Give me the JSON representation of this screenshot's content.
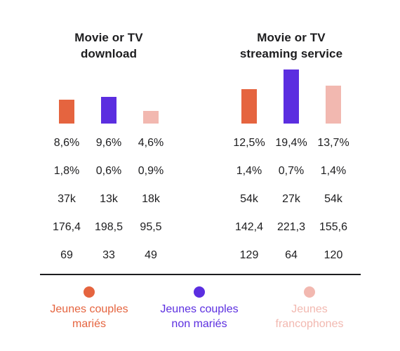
{
  "chart_data": [
    {
      "type": "bar",
      "title_lines": [
        "Movie or TV",
        "download"
      ],
      "categories": [
        "Jeunes couples mariés",
        "Jeunes couples non mariés",
        "Jeunes francophones"
      ],
      "values": [
        8.6,
        9.6,
        4.6
      ],
      "rows": [
        [
          "8,6%",
          "9,6%",
          "4,6%"
        ],
        [
          "1,8%",
          "0,6%",
          "0,9%"
        ],
        [
          "37k",
          "13k",
          "18k"
        ],
        [
          "176,4",
          "198,5",
          "95,5"
        ],
        [
          "69",
          "33",
          "49"
        ]
      ]
    },
    {
      "type": "bar",
      "title_lines": [
        "Movie or TV",
        "streaming service"
      ],
      "categories": [
        "Jeunes couples mariés",
        "Jeunes couples non mariés",
        "Jeunes francophones"
      ],
      "values": [
        12.5,
        19.4,
        13.7
      ],
      "rows": [
        [
          "12,5%",
          "19,4%",
          "13,7%"
        ],
        [
          "1,4%",
          "0,7%",
          "1,4%"
        ],
        [
          "54k",
          "27k",
          "54k"
        ],
        [
          "142,4",
          "221,3",
          "155,6"
        ],
        [
          "129",
          "64",
          "120"
        ]
      ]
    }
  ],
  "legend": [
    {
      "label_lines": [
        "Jeunes couples",
        "mariés"
      ],
      "color": "#e5643f"
    },
    {
      "label_lines": [
        "Jeunes couples",
        "non mariés"
      ],
      "color": "#5b2ee0"
    },
    {
      "label_lines": [
        "Jeunes",
        "francophones"
      ],
      "color": "#f2b8b0"
    }
  ]
}
